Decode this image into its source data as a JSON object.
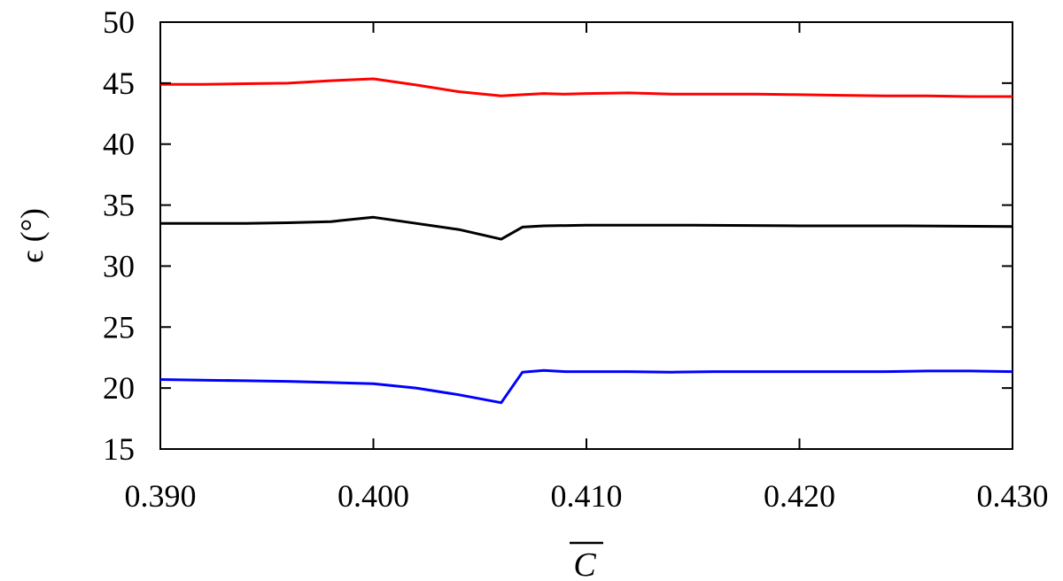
{
  "chart_data": {
    "type": "line",
    "title": "",
    "xlabel": "C",
    "ylabel": "ϵ (°)",
    "xlim": [
      0.39,
      0.43
    ],
    "ylim": [
      15,
      50
    ],
    "x_ticks": [
      "0.390",
      "0.400",
      "0.410",
      "0.420",
      "0.430"
    ],
    "x_tick_values": [
      0.39,
      0.4,
      0.41,
      0.42,
      0.43
    ],
    "y_ticks": [
      "15",
      "20",
      "25",
      "30",
      "35",
      "40",
      "45",
      "50"
    ],
    "y_tick_values": [
      15,
      20,
      25,
      30,
      35,
      40,
      45,
      50
    ],
    "grid": false,
    "legend": "none",
    "series": [
      {
        "color": "#ff0000",
        "x": [
          0.39,
          0.392,
          0.394,
          0.396,
          0.398,
          0.4,
          0.402,
          0.404,
          0.406,
          0.407,
          0.408,
          0.409,
          0.41,
          0.412,
          0.414,
          0.416,
          0.418,
          0.42,
          0.422,
          0.424,
          0.426,
          0.428,
          0.43
        ],
        "values": [
          44.9,
          44.9,
          44.95,
          45.0,
          45.2,
          45.35,
          44.85,
          44.3,
          43.95,
          44.05,
          44.15,
          44.1,
          44.15,
          44.2,
          44.1,
          44.1,
          44.1,
          44.05,
          44.0,
          43.95,
          43.95,
          43.9,
          43.9
        ]
      },
      {
        "color": "#000000",
        "x": [
          0.39,
          0.392,
          0.394,
          0.396,
          0.398,
          0.4,
          0.402,
          0.404,
          0.406,
          0.407,
          0.408,
          0.41,
          0.415,
          0.42,
          0.425,
          0.43
        ],
        "values": [
          33.5,
          33.5,
          33.5,
          33.55,
          33.65,
          34.0,
          33.5,
          33.0,
          32.2,
          33.2,
          33.3,
          33.35,
          33.35,
          33.3,
          33.3,
          33.25
        ]
      },
      {
        "color": "#0000ff",
        "x": [
          0.39,
          0.392,
          0.394,
          0.396,
          0.398,
          0.4,
          0.402,
          0.404,
          0.406,
          0.407,
          0.408,
          0.409,
          0.41,
          0.412,
          0.414,
          0.416,
          0.418,
          0.42,
          0.422,
          0.424,
          0.426,
          0.428,
          0.43
        ],
        "values": [
          20.7,
          20.65,
          20.6,
          20.55,
          20.45,
          20.35,
          20.0,
          19.45,
          18.8,
          21.3,
          21.45,
          21.35,
          21.35,
          21.35,
          21.3,
          21.35,
          21.35,
          21.35,
          21.35,
          21.35,
          21.4,
          21.4,
          21.35
        ]
      }
    ]
  }
}
